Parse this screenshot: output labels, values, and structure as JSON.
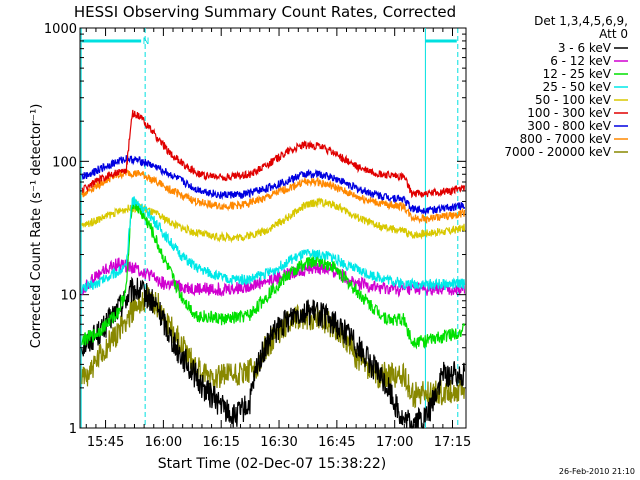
{
  "chart_data": {
    "type": "line",
    "title": "HESSI Observing Summary Count Rates, Corrected",
    "xlabel": "Start Time (02-Dec-07 15:38:22)",
    "ylabel": "Corrected Count Rate (s⁻¹ detector⁻¹)",
    "y_scale": "log",
    "ylim": [
      1,
      1000
    ],
    "xlim": [
      "15:38:22",
      "17:18:30"
    ],
    "x_ticks": [
      "15:45",
      "16:00",
      "16:15",
      "16:30",
      "16:45",
      "17:00",
      "17:15"
    ],
    "y_ticks": [
      "1",
      "10",
      "100",
      "1000"
    ],
    "x_units": "minutes after 15:38:22",
    "legend": {
      "position": "right",
      "header": [
        "Det 1,3,4,5,6,9,",
        "Att 0"
      ]
    },
    "timestamp": "26-Feb-2010 21:10",
    "night_marker": "N",
    "saa_lines_min": [
      0.3,
      89.6
    ],
    "night_lines_min": [
      16.9,
      98.0
    ],
    "series": [
      {
        "name": "3 - 6 keV",
        "color": "#000000",
        "x": [
          0,
          6,
          10,
          14,
          17,
          20,
          25,
          32,
          40,
          44,
          46,
          50,
          56,
          62,
          70,
          80,
          84,
          86,
          90,
          94,
          96,
          100
        ],
        "y": [
          4,
          5.5,
          8,
          11,
          10,
          8,
          4,
          2,
          1.2,
          1.5,
          3,
          5,
          7.5,
          7.3,
          5,
          2,
          1.1,
          1.1,
          1.2,
          2.5,
          2.5,
          2.6
        ]
      },
      {
        "name": "6 - 12 keV",
        "color": "#d000d0",
        "x": [
          0,
          2,
          6,
          10,
          14,
          18,
          22,
          30,
          40,
          50,
          56,
          60,
          66,
          72,
          80,
          84,
          86,
          90,
          96,
          100
        ],
        "y": [
          10,
          12,
          15,
          17,
          16,
          14,
          12,
          11,
          11,
          13,
          15,
          16,
          15,
          12,
          11,
          11,
          11,
          11,
          11,
          11
        ]
      },
      {
        "name": "12 - 25 keV",
        "color": "#00e000",
        "x": [
          0,
          4,
          8,
          10,
          12,
          13.5,
          15,
          18,
          22,
          26,
          30,
          38,
          44,
          50,
          54,
          58,
          62,
          66,
          70,
          76,
          80,
          84,
          86,
          90,
          96,
          100
        ],
        "y": [
          4.5,
          5,
          6.5,
          7.5,
          11,
          50,
          45,
          33,
          18,
          10,
          7,
          6.5,
          7,
          11,
          14,
          17,
          18,
          16,
          12,
          8,
          6.5,
          6.5,
          4.5,
          4.5,
          5,
          5.5
        ]
      },
      {
        "name": "25 - 50 keV",
        "color": "#00e8e8",
        "x": [
          0,
          4,
          8,
          10,
          12,
          13.5,
          15,
          18,
          22,
          26,
          30,
          38,
          44,
          50,
          54,
          58,
          62,
          66,
          70,
          76,
          80,
          84,
          86,
          90,
          96,
          100
        ],
        "y": [
          11,
          12,
          14,
          15,
          16,
          52,
          48,
          40,
          28,
          20,
          16,
          13,
          13,
          15,
          18,
          20,
          20,
          19,
          16,
          14,
          13,
          12,
          12,
          12,
          12,
          12
        ]
      },
      {
        "name": "50 - 100 keV",
        "color": "#d8c800",
        "x": [
          0,
          4,
          8,
          12,
          16,
          20,
          25,
          30,
          36,
          42,
          48,
          54,
          58,
          62,
          66,
          72,
          78,
          84,
          86,
          90,
          96,
          100
        ],
        "y": [
          32,
          36,
          40,
          44,
          45,
          40,
          33,
          29,
          27,
          27,
          30,
          38,
          46,
          50,
          47,
          38,
          32,
          30,
          28,
          29,
          30,
          32
        ]
      },
      {
        "name": "100 - 300 keV",
        "color": "#e00000",
        "x": [
          0,
          4,
          8,
          12,
          13.5,
          16,
          20,
          24,
          28,
          32,
          38,
          44,
          50,
          54,
          58,
          62,
          66,
          72,
          78,
          84,
          86,
          90,
          96,
          100
        ],
        "y": [
          60,
          70,
          80,
          85,
          230,
          210,
          150,
          110,
          90,
          78,
          76,
          80,
          100,
          120,
          132,
          130,
          115,
          90,
          80,
          76,
          58,
          57,
          60,
          65
        ]
      },
      {
        "name": "300 - 800 keV",
        "color": "#0000e0",
        "x": [
          0,
          4,
          8,
          12,
          16,
          20,
          25,
          30,
          36,
          42,
          48,
          54,
          58,
          62,
          66,
          72,
          78,
          84,
          86,
          90,
          96,
          100
        ],
        "y": [
          75,
          85,
          95,
          105,
          100,
          90,
          75,
          62,
          56,
          56,
          62,
          72,
          80,
          80,
          75,
          62,
          55,
          52,
          44,
          43,
          45,
          47
        ]
      },
      {
        "name": "800 - 7000 keV",
        "color": "#ff8800",
        "x": [
          0,
          4,
          8,
          12,
          16,
          20,
          25,
          30,
          36,
          42,
          48,
          54,
          58,
          62,
          66,
          72,
          78,
          84,
          86,
          90,
          96,
          100
        ],
        "y": [
          55,
          65,
          75,
          82,
          80,
          70,
          58,
          50,
          46,
          47,
          53,
          63,
          70,
          70,
          64,
          54,
          48,
          46,
          38,
          37,
          39,
          41
        ]
      },
      {
        "name": "7000 - 20000 keV",
        "color": "#888800",
        "x": [
          0,
          4,
          8,
          12,
          14,
          17,
          20,
          24,
          28,
          32,
          36,
          40,
          44,
          46,
          48,
          52,
          56,
          60,
          64,
          68,
          72,
          76,
          80,
          84,
          86,
          88,
          92,
          96,
          100
        ],
        "y": [
          2.2,
          3,
          4.5,
          6.5,
          8,
          9.5,
          8.5,
          5.5,
          3.5,
          2.5,
          2.5,
          2.5,
          2.6,
          3,
          4,
          5.5,
          6.8,
          6.8,
          6.3,
          5,
          3.3,
          2.5,
          2.5,
          2.5,
          1.8,
          1.8,
          1.8,
          1.9,
          2
        ]
      }
    ]
  }
}
